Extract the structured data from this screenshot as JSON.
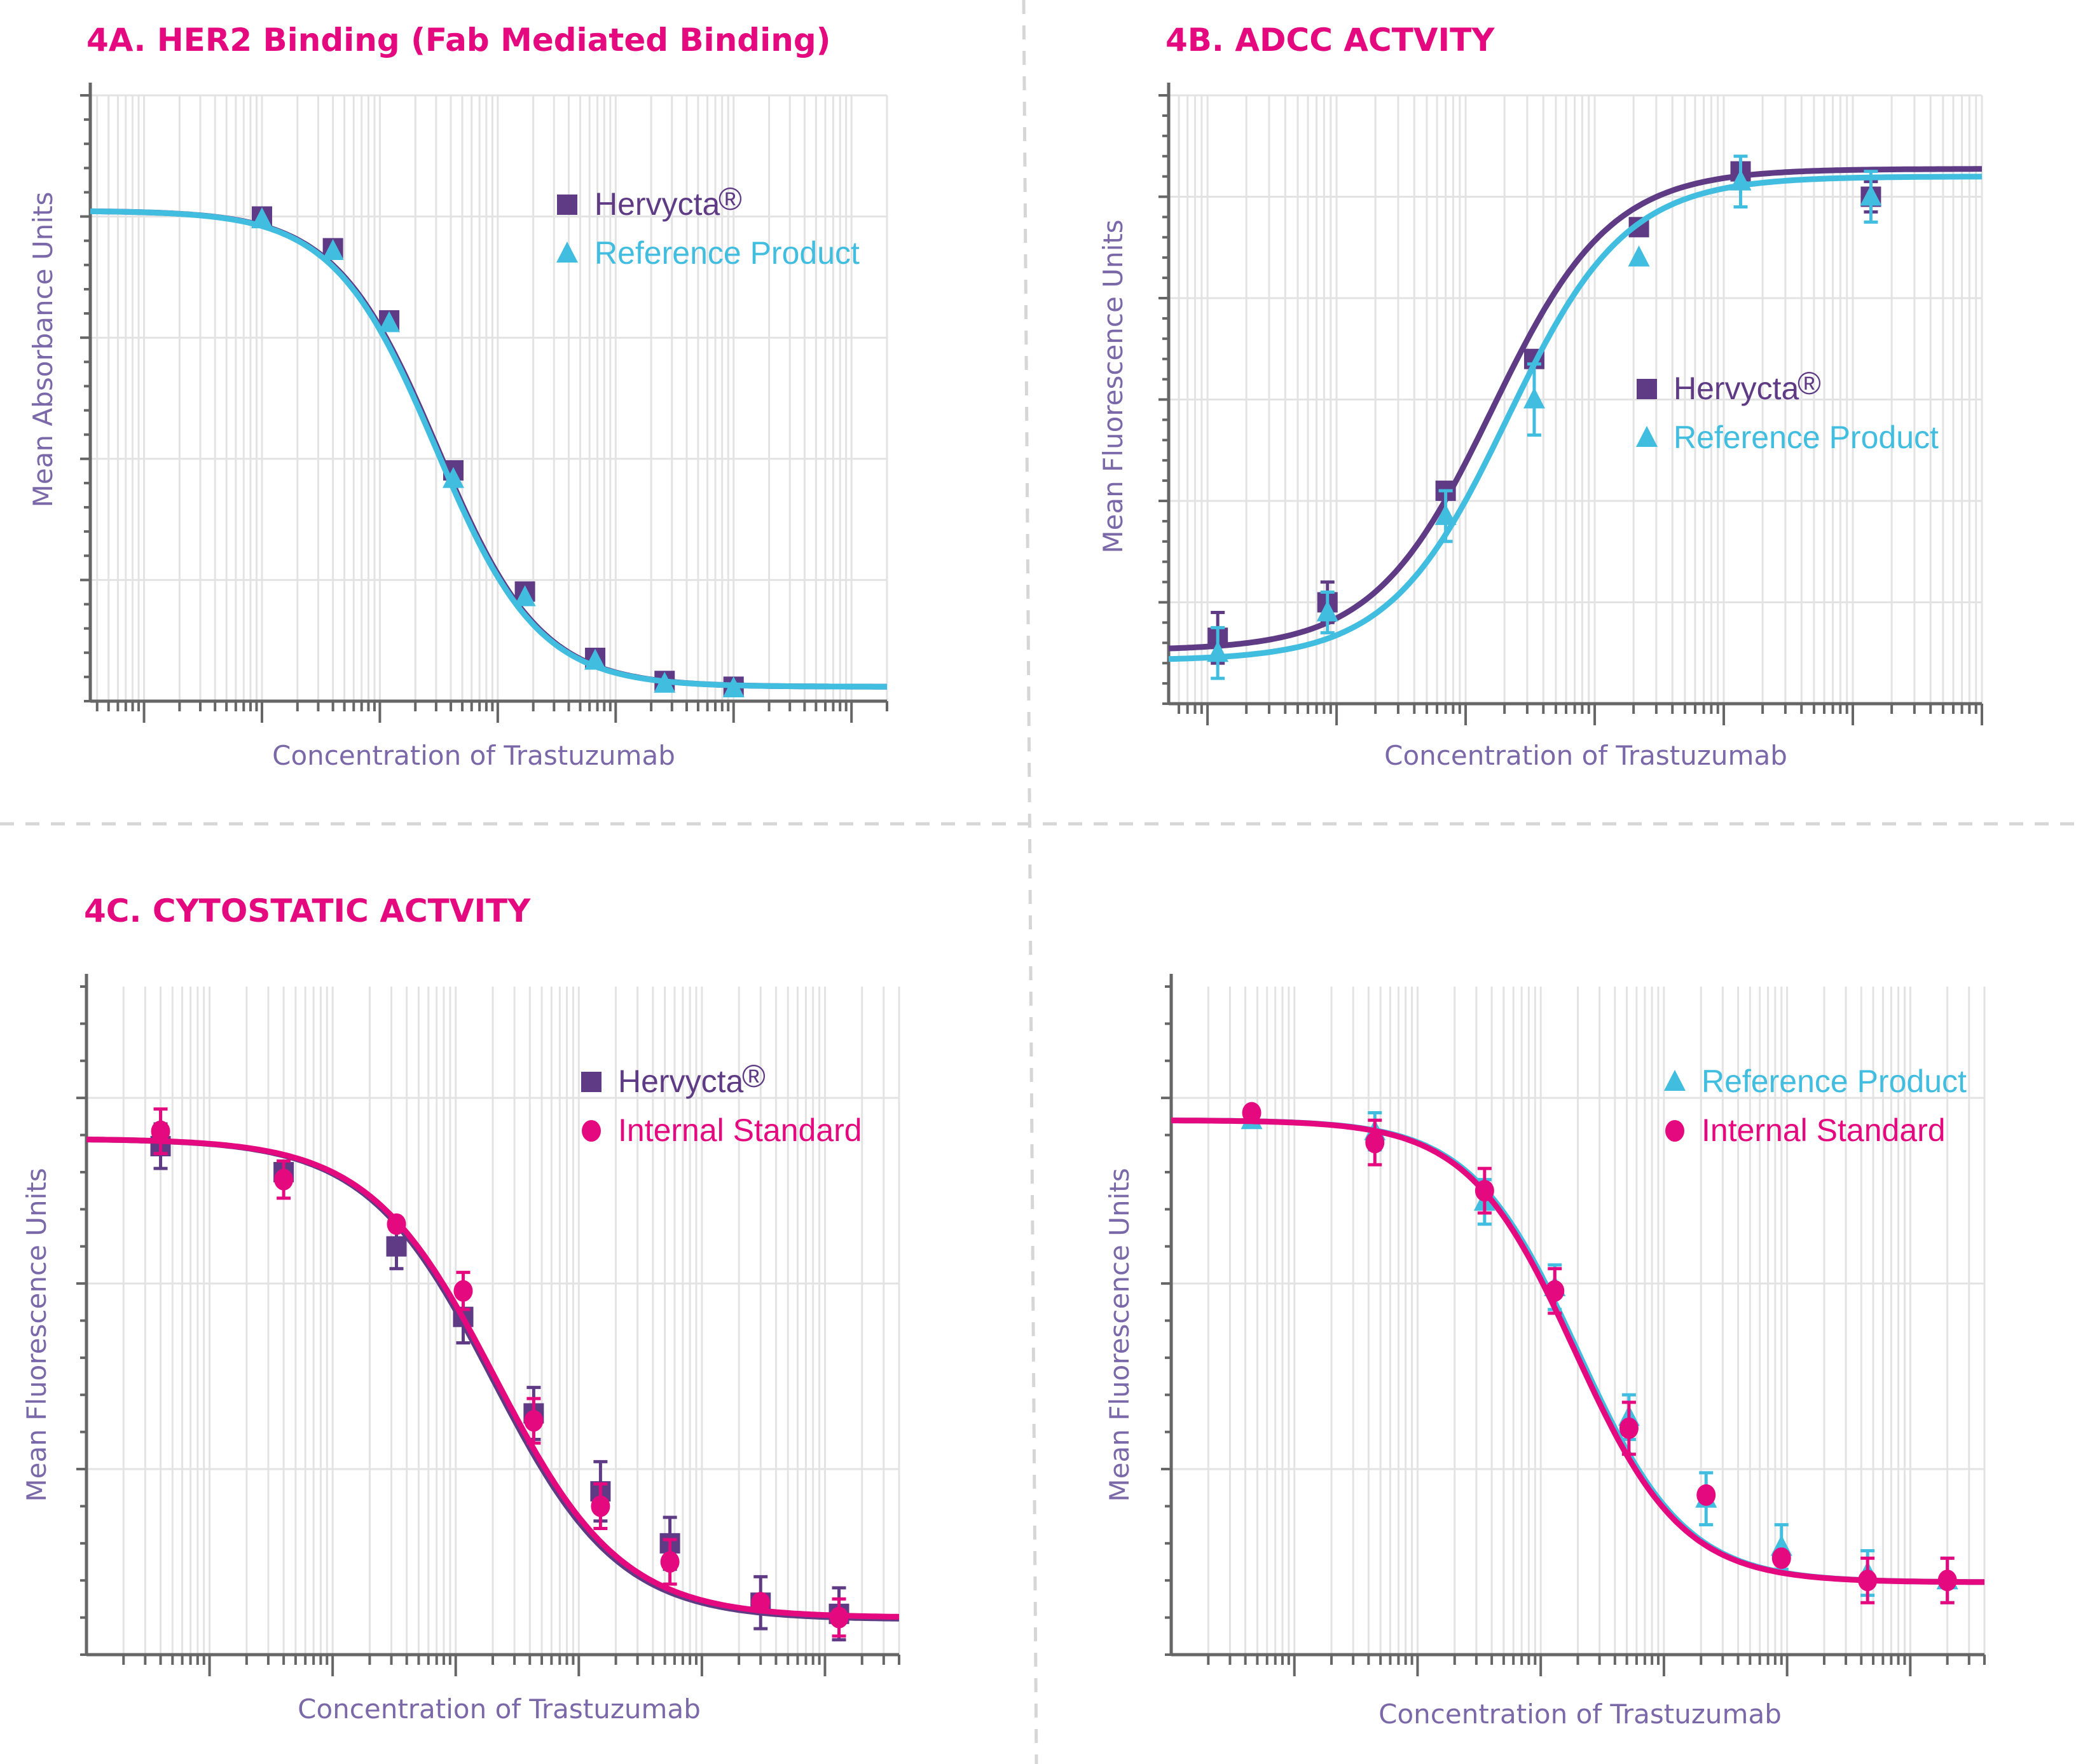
{
  "colors": {
    "hervycta": "#5f3b85",
    "reference": "#41bde0",
    "internal": "#e5097f",
    "title": "#e5097f",
    "axis_label": "#7b68a8"
  },
  "chart_data": [
    {
      "id": "4A",
      "type": "line",
      "title": "4A. HER2 Binding (Fab Mediated Binding)",
      "xlabel": "Concentration of Trastuzumab",
      "ylabel": "Mean Absorbance Units",
      "xscale": "log",
      "xlim": [
        0.0035,
        20000
      ],
      "ylim": [
        0,
        1.05
      ],
      "grid": true,
      "legend_position": "top-right",
      "series": [
        {
          "name": "Hervycta",
          "legend_label": "Hervycta",
          "legend_mark": "®",
          "marker": "square",
          "color_key": "hervycta",
          "x": [
            0.1,
            0.4,
            1.2,
            4.2,
            17,
            67,
            260,
            1000
          ],
          "y": [
            0.84,
            0.785,
            0.66,
            0.4,
            0.19,
            0.075,
            0.035,
            0.025
          ],
          "fit": {
            "top": 0.85,
            "bottom": 0.025,
            "ec50": 3.1,
            "hill": 1.0
          }
        },
        {
          "name": "Reference Product",
          "legend_label": "Reference Product",
          "marker": "triangle",
          "color_key": "reference",
          "x": [
            0.1,
            0.4,
            1.2,
            4.2,
            17,
            67,
            260,
            1000
          ],
          "y": [
            0.835,
            0.78,
            0.655,
            0.385,
            0.18,
            0.07,
            0.03,
            0.022
          ],
          "fit": {
            "top": 0.85,
            "bottom": 0.025,
            "ec50": 3.0,
            "hill": 1.0
          }
        }
      ]
    },
    {
      "id": "4B",
      "type": "line",
      "title": "4B. ADCC ACTVITY",
      "xlabel": "Concentration of Trastuzumab",
      "ylabel": "Mean Fluorescence Units",
      "xscale": "log",
      "xlim": [
        0.005,
        10000
      ],
      "ylim": [
        0,
        1.2
      ],
      "grid": true,
      "legend_position": "center-right",
      "series": [
        {
          "name": "Hervycta",
          "legend_label": "Hervycta",
          "legend_mark": "®",
          "marker": "square",
          "color_key": "hervycta",
          "x": [
            0.012,
            0.085,
            0.7,
            3.4,
            22,
            135,
            1380
          ],
          "y": [
            0.13,
            0.2,
            0.42,
            0.68,
            0.94,
            1.05,
            1.0
          ],
          "err": [
            0.05,
            0.04,
            0.0,
            0.0,
            0.0,
            0.0,
            0.03
          ],
          "fit": {
            "top": 1.055,
            "bottom": 0.105,
            "ec50": 1.6,
            "hill": 0.95
          }
        },
        {
          "name": "Reference Product",
          "legend_label": "Reference Product",
          "marker": "triangle",
          "color_key": "reference",
          "x": [
            0.012,
            0.085,
            0.7,
            3.4,
            22,
            135,
            1380
          ],
          "y": [
            0.1,
            0.18,
            0.37,
            0.6,
            0.88,
            1.03,
            1.0
          ],
          "err": [
            0.05,
            0.04,
            0.05,
            0.07,
            0.0,
            0.05,
            0.05
          ],
          "fit": {
            "top": 1.04,
            "bottom": 0.085,
            "ec50": 2.1,
            "hill": 0.95
          }
        }
      ]
    },
    {
      "id": "4C",
      "type": "line",
      "title": "4C. CYTOSTATIC ACTVITY",
      "xlabel": "Concentration of Trastuzumab",
      "ylabel": "Mean Fluorescence Units",
      "xscale": "log",
      "xlim": [
        0.01,
        40000
      ],
      "ylim": [
        0,
        1.8
      ],
      "grid": true,
      "legend_position": "top-right",
      "series": [
        {
          "name": "Hervycta",
          "legend_label": "Hervycta",
          "legend_mark": "®",
          "marker": "square",
          "color_key": "hervycta",
          "x": [
            0.04,
            0.4,
            3.3,
            11.5,
            43,
            150,
            550,
            3000,
            13000
          ],
          "y": [
            1.37,
            1.3,
            1.1,
            0.91,
            0.65,
            0.44,
            0.3,
            0.14,
            0.11
          ],
          "err": [
            0.06,
            0.0,
            0.06,
            0.07,
            0.07,
            0.08,
            0.07,
            0.07,
            0.07
          ],
          "fit": {
            "top": 1.39,
            "bottom": 0.095,
            "ec50": 20,
            "hill": 0.85
          }
        },
        {
          "name": "Internal Standard",
          "legend_label": "Internal Standard",
          "marker": "circle",
          "color_key": "internal",
          "x": [
            0.04,
            0.4,
            3.3,
            11.5,
            43,
            150,
            550,
            3000,
            13000
          ],
          "y": [
            1.41,
            1.28,
            1.16,
            0.98,
            0.63,
            0.4,
            0.25,
            0.14,
            0.1
          ],
          "err": [
            0.06,
            0.05,
            0.0,
            0.05,
            0.06,
            0.06,
            0.06,
            0.0,
            0.05
          ],
          "fit": {
            "top": 1.39,
            "bottom": 0.1,
            "ec50": 21,
            "hill": 0.85
          }
        }
      ]
    },
    {
      "id": "4D",
      "type": "line",
      "title": "",
      "xlabel": "Concentration of Trastuzumab",
      "ylabel": "Mean Fluorescence Units",
      "xscale": "log",
      "xlim": [
        0.01,
        40000
      ],
      "ylim": [
        0,
        1.8
      ],
      "grid": true,
      "legend_position": "top-right",
      "series": [
        {
          "name": "Reference Product",
          "legend_label": "Reference Product",
          "marker": "triangle",
          "color_key": "reference",
          "x": [
            0.045,
            0.45,
            3.5,
            13,
            52,
            220,
            900,
            4500,
            20000
          ],
          "y": [
            1.44,
            1.41,
            1.22,
            0.99,
            0.64,
            0.42,
            0.29,
            0.22,
            0.2
          ],
          "err": [
            0.0,
            0.05,
            0.06,
            0.06,
            0.06,
            0.07,
            0.06,
            0.06,
            0.06
          ],
          "fit": {
            "top": 1.44,
            "bottom": 0.195,
            "ec50": 20,
            "hill": 1.0
          }
        },
        {
          "name": "Internal Standard",
          "legend_label": "Internal Standard",
          "marker": "circle",
          "color_key": "internal",
          "x": [
            0.045,
            0.45,
            3.5,
            13,
            52,
            220,
            900,
            4500,
            20000
          ],
          "y": [
            1.46,
            1.38,
            1.25,
            0.98,
            0.61,
            0.43,
            0.26,
            0.2,
            0.2
          ],
          "err": [
            0.0,
            0.06,
            0.06,
            0.06,
            0.07,
            0.0,
            0.0,
            0.06,
            0.06
          ],
          "fit": {
            "top": 1.44,
            "bottom": 0.195,
            "ec50": 19,
            "hill": 1.0
          }
        }
      ]
    }
  ]
}
